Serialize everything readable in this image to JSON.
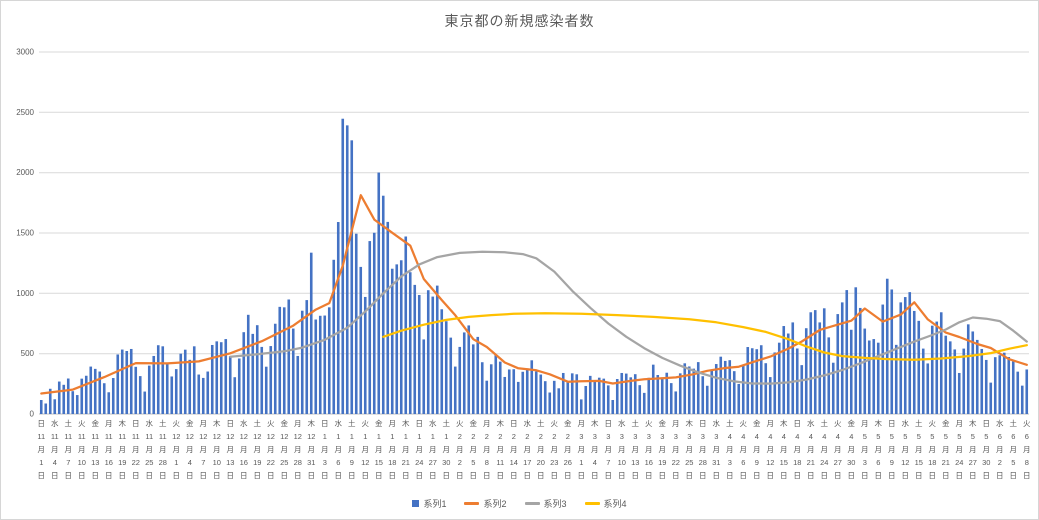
{
  "chart_data": {
    "type": "bar",
    "combo": "bar+line",
    "title": "東京都の新規感染者数",
    "ylim": [
      0,
      3000
    ],
    "y_step": 500,
    "y_ticks": [
      "0",
      "500",
      "1000",
      "1500",
      "2000",
      "2500",
      "3000"
    ],
    "grid_color": "#d9d9d9",
    "axis_line_color": "#bfbfbf",
    "axis_text_color": "#595959",
    "legend_position": "bottom",
    "x_tick_interval_days": 3,
    "x_ticks": [
      [
        "日",
        "11",
        "1"
      ],
      [
        "水",
        "11",
        "4"
      ],
      [
        "土",
        "11",
        "7"
      ],
      [
        "火",
        "11",
        "10"
      ],
      [
        "金",
        "11",
        "13"
      ],
      [
        "月",
        "11",
        "16"
      ],
      [
        "木",
        "11",
        "19"
      ],
      [
        "日",
        "11",
        "22"
      ],
      [
        "水",
        "11",
        "25"
      ],
      [
        "土",
        "11",
        "28"
      ],
      [
        "火",
        "12",
        "1"
      ],
      [
        "金",
        "12",
        "4"
      ],
      [
        "月",
        "12",
        "7"
      ],
      [
        "木",
        "12",
        "10"
      ],
      [
        "日",
        "12",
        "13"
      ],
      [
        "水",
        "12",
        "16"
      ],
      [
        "土",
        "12",
        "19"
      ],
      [
        "火",
        "12",
        "22"
      ],
      [
        "金",
        "12",
        "25"
      ],
      [
        "月",
        "12",
        "28"
      ],
      [
        "木",
        "12",
        "31"
      ],
      [
        "日",
        "1",
        "3"
      ],
      [
        "水",
        "1",
        "6"
      ],
      [
        "土",
        "1",
        "9"
      ],
      [
        "火",
        "1",
        "12"
      ],
      [
        "金",
        "1",
        "15"
      ],
      [
        "月",
        "1",
        "18"
      ],
      [
        "木",
        "1",
        "21"
      ],
      [
        "日",
        "1",
        "24"
      ],
      [
        "水",
        "1",
        "27"
      ],
      [
        "土",
        "1",
        "30"
      ],
      [
        "火",
        "2",
        "2"
      ],
      [
        "金",
        "2",
        "5"
      ],
      [
        "月",
        "2",
        "8"
      ],
      [
        "木",
        "2",
        "11"
      ],
      [
        "日",
        "2",
        "14"
      ],
      [
        "水",
        "2",
        "17"
      ],
      [
        "土",
        "2",
        "20"
      ],
      [
        "火",
        "2",
        "23"
      ],
      [
        "金",
        "2",
        "26"
      ],
      [
        "月",
        "3",
        "1"
      ],
      [
        "木",
        "3",
        "4"
      ],
      [
        "日",
        "3",
        "7"
      ],
      [
        "水",
        "3",
        "10"
      ],
      [
        "土",
        "3",
        "13"
      ],
      [
        "火",
        "3",
        "16"
      ],
      [
        "金",
        "3",
        "19"
      ],
      [
        "月",
        "3",
        "22"
      ],
      [
        "木",
        "3",
        "25"
      ],
      [
        "日",
        "3",
        "28"
      ],
      [
        "水",
        "3",
        "31"
      ],
      [
        "土",
        "4",
        "3"
      ],
      [
        "火",
        "4",
        "6"
      ],
      [
        "金",
        "4",
        "9"
      ],
      [
        "月",
        "4",
        "12"
      ],
      [
        "木",
        "4",
        "15"
      ],
      [
        "日",
        "4",
        "18"
      ],
      [
        "水",
        "4",
        "21"
      ],
      [
        "土",
        "4",
        "24"
      ],
      [
        "火",
        "4",
        "27"
      ],
      [
        "金",
        "4",
        "30"
      ],
      [
        "月",
        "5",
        "3"
      ],
      [
        "木",
        "5",
        "6"
      ],
      [
        "日",
        "5",
        "9"
      ],
      [
        "水",
        "5",
        "12"
      ],
      [
        "土",
        "5",
        "15"
      ],
      [
        "火",
        "5",
        "18"
      ],
      [
        "金",
        "5",
        "21"
      ],
      [
        "月",
        "5",
        "24"
      ],
      [
        "木",
        "5",
        "27"
      ],
      [
        "日",
        "5",
        "30"
      ],
      [
        "水",
        "6",
        "2"
      ],
      [
        "土",
        "6",
        "5"
      ],
      [
        "火",
        "6",
        "8"
      ]
    ],
    "series": [
      {
        "name": "系列1",
        "type": "bar",
        "color": "#4472c4",
        "values": [
          116,
          87,
          209,
          122,
          269,
          242,
          294,
          189,
          157,
          293,
          317,
          393,
          374,
          352,
          255,
          180,
          298,
          493,
          534,
          522,
          539,
          391,
          314,
          186,
          401,
          481,
          570,
          561,
          418,
          311,
          372,
          500,
          533,
          449,
          561,
          327,
          299,
          352,
          572,
          602,
          595,
          621,
          480,
          305,
          460,
          678,
          822,
          664,
          736,
          556,
          392,
          563,
          748,
          888,
          884,
          949,
          708,
          481,
          856,
          944,
          1337,
          783,
          814,
          816,
          884,
          1278,
          1591,
          2447,
          2392,
          2268,
          1494,
          1219,
          970,
          1433,
          1502,
          2001,
          1809,
          1592,
          1204,
          1240,
          1274,
          1471,
          1175,
          1070,
          986,
          618,
          1026,
          973,
          1064,
          868,
          769,
          633,
          393,
          556,
          676,
          734,
          577,
          639,
          429,
          276,
          412,
          491,
          434,
          307,
          369,
          371,
          266,
          350,
          378,
          445,
          353,
          327,
          272,
          178,
          275,
          213,
          340,
          270,
          337,
          329,
          121,
          232,
          316,
          279,
          301,
          293,
          237,
          116,
          290,
          340,
          335,
          304,
          330,
          239,
          175,
          300,
          409,
          323,
          303,
          342,
          256,
          187,
          337,
          420,
          394,
          376,
          430,
          313,
          234,
          364,
          414,
          475,
          440,
          446,
          355,
          249,
          399,
          555,
          545,
          537,
          570,
          421,
          306,
          510,
          591,
          729,
          667,
          759,
          543,
          405,
          711,
          843,
          861,
          759,
          876,
          635,
          425,
          828,
          925,
          1027,
          698,
          1050,
          879,
          708,
          609,
          621,
          591,
          907,
          1121,
          1032,
          573,
          925,
          969,
          1010,
          854,
          772,
          542,
          419,
          732,
          766,
          843,
          649,
          602,
          535,
          340,
          542,
          743,
          684,
          614,
          539,
          448,
          260,
          471,
          487,
          508,
          472,
          436,
          351,
          235,
          369
        ]
      },
      {
        "name": "系列2",
        "type": "line",
        "color": "#ed7d31",
        "points": [
          [
            0,
            170
          ],
          [
            7,
            202
          ],
          [
            14,
            306
          ],
          [
            21,
            422
          ],
          [
            28,
            419
          ],
          [
            35,
            436
          ],
          [
            42,
            503
          ],
          [
            49,
            603
          ],
          [
            56,
            733
          ],
          [
            61,
            865
          ],
          [
            64,
            919
          ],
          [
            67,
            1230
          ],
          [
            71,
            1813
          ],
          [
            74,
            1611
          ],
          [
            78,
            1502
          ],
          [
            82,
            1395
          ],
          [
            85,
            1119
          ],
          [
            89,
            944
          ],
          [
            92,
            818
          ],
          [
            96,
            620
          ],
          [
            99,
            555
          ],
          [
            103,
            427
          ],
          [
            106,
            379
          ],
          [
            110,
            362
          ],
          [
            113,
            329
          ],
          [
            117,
            268
          ],
          [
            120,
            272
          ],
          [
            124,
            274
          ],
          [
            127,
            253
          ],
          [
            131,
            274
          ],
          [
            134,
            288
          ],
          [
            138,
            297
          ],
          [
            141,
            303
          ],
          [
            145,
            330
          ],
          [
            148,
            358
          ],
          [
            152,
            381
          ],
          [
            155,
            392
          ],
          [
            159,
            441
          ],
          [
            162,
            476
          ],
          [
            166,
            542
          ],
          [
            169,
            601
          ],
          [
            173,
            697
          ],
          [
            176,
            730
          ],
          [
            180,
            773
          ],
          [
            183,
            874
          ],
          [
            187,
            766
          ],
          [
            191,
            824
          ],
          [
            194,
            926
          ],
          [
            197,
            784
          ],
          [
            201,
            675
          ],
          [
            204,
            638
          ],
          [
            208,
            580
          ],
          [
            211,
            547
          ],
          [
            215,
            455
          ],
          [
            219,
            408
          ]
        ]
      },
      {
        "name": "系列3",
        "type": "line",
        "color": "#a5a5a5",
        "points": [
          [
            42,
            475
          ],
          [
            48,
            495
          ],
          [
            54,
            520
          ],
          [
            58,
            550
          ],
          [
            63,
            615
          ],
          [
            68,
            715
          ],
          [
            72,
            850
          ],
          [
            76,
            1000
          ],
          [
            80,
            1140
          ],
          [
            84,
            1240
          ],
          [
            88,
            1300
          ],
          [
            93,
            1335
          ],
          [
            98,
            1345
          ],
          [
            103,
            1340
          ],
          [
            107,
            1325
          ],
          [
            110,
            1290
          ],
          [
            114,
            1180
          ],
          [
            118,
            1020
          ],
          [
            122,
            880
          ],
          [
            126,
            750
          ],
          [
            130,
            640
          ],
          [
            134,
            545
          ],
          [
            138,
            465
          ],
          [
            142,
            400
          ],
          [
            146,
            345
          ],
          [
            150,
            300
          ],
          [
            154,
            270
          ],
          [
            158,
            253
          ],
          [
            162,
            252
          ],
          [
            166,
            262
          ],
          [
            170,
            285
          ],
          [
            174,
            320
          ],
          [
            178,
            365
          ],
          [
            182,
            420
          ],
          [
            186,
            480
          ],
          [
            190,
            540
          ],
          [
            194,
            600
          ],
          [
            198,
            655
          ],
          [
            201,
            700
          ],
          [
            204,
            760
          ],
          [
            207,
            800
          ],
          [
            210,
            790
          ],
          [
            213,
            770
          ],
          [
            216,
            690
          ],
          [
            219,
            600
          ]
        ]
      },
      {
        "name": "系列4",
        "type": "line",
        "color": "#ffc000",
        "points": [
          [
            76,
            640
          ],
          [
            80,
            690
          ],
          [
            85,
            740
          ],
          [
            90,
            780
          ],
          [
            95,
            805
          ],
          [
            100,
            820
          ],
          [
            105,
            830
          ],
          [
            112,
            835
          ],
          [
            120,
            830
          ],
          [
            128,
            820
          ],
          [
            136,
            805
          ],
          [
            144,
            785
          ],
          [
            150,
            760
          ],
          [
            156,
            720
          ],
          [
            161,
            680
          ],
          [
            166,
            620
          ],
          [
            170,
            560
          ],
          [
            174,
            510
          ],
          [
            178,
            480
          ],
          [
            183,
            465
          ],
          [
            188,
            455
          ],
          [
            194,
            450
          ],
          [
            200,
            460
          ],
          [
            206,
            480
          ],
          [
            211,
            505
          ],
          [
            215,
            540
          ],
          [
            219,
            570
          ]
        ]
      }
    ]
  }
}
